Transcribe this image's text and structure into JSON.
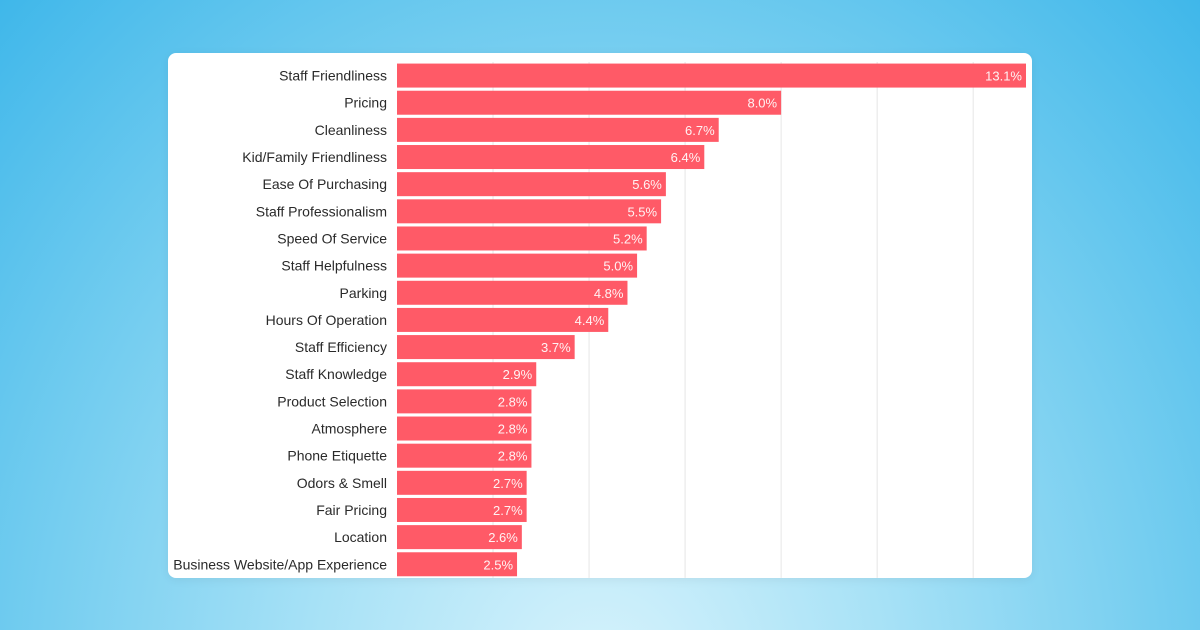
{
  "chart_data": {
    "type": "bar",
    "orientation": "horizontal",
    "title": "",
    "xlabel": "",
    "ylabel": "",
    "categories": [
      "Staff Friendliness",
      "Pricing",
      "Cleanliness",
      "Kid/Family Friendliness",
      "Ease Of Purchasing",
      "Staff Professionalism",
      "Speed Of Service",
      "Staff Helpfulness",
      "Parking",
      "Hours Of Operation",
      "Staff Efficiency",
      "Staff Knowledge",
      "Product Selection",
      "Atmosphere",
      "Phone Etiquette",
      "Odors & Smell",
      "Fair Pricing",
      "Location",
      "Business Website/App Experience"
    ],
    "values": [
      13.1,
      8.0,
      6.7,
      6.4,
      5.6,
      5.5,
      5.2,
      5.0,
      4.8,
      4.4,
      3.7,
      2.9,
      2.8,
      2.8,
      2.8,
      2.7,
      2.7,
      2.6,
      2.5
    ],
    "value_labels": [
      "13.1%",
      "8.0%",
      "6.7%",
      "6.4%",
      "5.6%",
      "5.5%",
      "5.2%",
      "5.0%",
      "4.8%",
      "4.4%",
      "3.7%",
      "2.9%",
      "2.8%",
      "2.8%",
      "2.8%",
      "2.7%",
      "2.7%",
      "2.6%",
      "2.5%"
    ],
    "xlim": [
      0,
      13.1
    ],
    "grid_values": [
      2,
      4,
      6,
      8,
      10,
      12
    ],
    "grid": true,
    "legend": "none",
    "bar_color": "#ff5a67",
    "grid_color": "#e6e6e6"
  }
}
